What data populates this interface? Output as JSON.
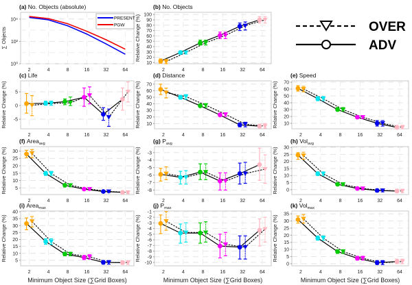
{
  "figure": {
    "xlabel": "Minimum Object Size (∑Grid Boxes)",
    "legend_marker": {
      "over_label": "OVER",
      "adv_label": "ADV"
    },
    "size_colors": [
      "#ffa500",
      "#00e5ee",
      "#00cc00",
      "#ff00ff",
      "#0000ee",
      "#ffb6c1"
    ]
  },
  "chart_data": [
    {
      "id": "a",
      "type": "line",
      "panel_label": "(a)",
      "title": "No. Objects (absolute)",
      "ylabel": "∑ Objects",
      "yscale": "log",
      "x": [
        2,
        4,
        8,
        16,
        32,
        64
      ],
      "xticklabels": [
        "2",
        "4",
        "8",
        "16",
        "32",
        "64"
      ],
      "ylim": [
        1,
        40000
      ],
      "yticks": [
        1,
        100,
        10000
      ],
      "yticklabels": [
        "10⁰",
        "10²",
        "10⁴"
      ],
      "legend": "top-right",
      "series": [
        {
          "name": "PRESENT",
          "color": "#0000ee",
          "values": [
            14000,
            8500,
            2500,
            450,
            60,
            7
          ]
        },
        {
          "name": "PGW",
          "color": "#ee0000",
          "values": [
            17000,
            11000,
            3800,
            800,
            140,
            20
          ]
        }
      ]
    },
    {
      "id": "b",
      "type": "line",
      "panel_label": "(b)",
      "title": "No. Objects",
      "ylabel": "Relative Change (%)",
      "x": [
        2,
        4,
        8,
        16,
        32,
        64
      ],
      "xticklabels": [
        "2",
        "4",
        "8",
        "16",
        "32",
        "64"
      ],
      "ylim": [
        8,
        104
      ],
      "yticks": [
        10,
        20,
        30,
        40,
        50,
        60,
        70,
        80,
        90,
        100
      ],
      "series": [
        {
          "name": "ADV",
          "values": [
            13,
            29,
            47,
            61,
            78,
            90
          ],
          "err_low": [
            9,
            26,
            43,
            55,
            70,
            84
          ],
          "err_high": [
            17,
            32,
            52,
            67,
            84,
            96
          ]
        },
        {
          "name": "OVER",
          "values": [
            12,
            29,
            47,
            61,
            79,
            90
          ],
          "err_low": [
            8,
            26,
            43,
            55,
            71,
            84
          ],
          "err_high": [
            16,
            32,
            52,
            67,
            86,
            96
          ]
        }
      ]
    },
    {
      "id": "c",
      "type": "line",
      "panel_label": "(c)",
      "title": "Life",
      "ylabel": "Relative Change (%)",
      "x": [
        2,
        4,
        8,
        16,
        32,
        64
      ],
      "xticklabels": [
        "2",
        "4",
        "8",
        "16",
        "32",
        "64"
      ],
      "ylim": [
        -8.5,
        9
      ],
      "yticks": [
        -5,
        0,
        5
      ],
      "series": [
        {
          "name": "ADV",
          "values": [
            0.7,
            0.8,
            1.4,
            3.0,
            -3.2,
            2.3
          ],
          "err_low": [
            -2.8,
            0.1,
            0.3,
            -0.3,
            -5.4,
            -1.7
          ],
          "err_high": [
            4.4,
            1.6,
            2.4,
            6.4,
            -0.8,
            6.4
          ]
        },
        {
          "name": "OVER",
          "values": [
            0.1,
            0.7,
            1.0,
            3.7,
            -4.3,
            5.0
          ],
          "err_low": [
            -3.7,
            0.1,
            0.0,
            0.6,
            -7.6,
            1.3
          ],
          "err_high": [
            3.6,
            1.6,
            3.1,
            6.8,
            -1.3,
            8.6
          ]
        }
      ]
    },
    {
      "id": "d",
      "type": "line",
      "panel_label": "(d)",
      "title": "Distance",
      "ylabel": "Relative Change (%)",
      "x": [
        2,
        4,
        8,
        16,
        32,
        64
      ],
      "xticklabels": [
        "2",
        "4",
        "8",
        "16",
        "32",
        "64"
      ],
      "ylim": [
        2,
        75
      ],
      "yticks": [
        10,
        20,
        30,
        40,
        50,
        60,
        70
      ],
      "series": [
        {
          "name": "ADV",
          "values": [
            62,
            50,
            37,
            23,
            8,
            6
          ],
          "err_low": [
            54,
            47,
            35,
            21,
            5,
            3
          ],
          "err_high": [
            70,
            53,
            40,
            26,
            11,
            9
          ]
        },
        {
          "name": "OVER",
          "values": [
            57,
            51,
            38,
            24,
            9,
            6
          ],
          "err_low": [
            49,
            47,
            35,
            21,
            5,
            3
          ],
          "err_high": [
            64,
            54,
            40,
            26,
            12,
            10
          ]
        }
      ]
    },
    {
      "id": "e",
      "type": "line",
      "panel_label": "(e)",
      "title": "Speed",
      "ylabel": "Relative Change (%)",
      "x": [
        2,
        4,
        8,
        16,
        32,
        64
      ],
      "xticklabels": [
        "2",
        "4",
        "8",
        "16",
        "32",
        "64"
      ],
      "ylim": [
        2,
        72
      ],
      "yticks": [
        10,
        20,
        30,
        40,
        50,
        60,
        70
      ],
      "series": [
        {
          "name": "ADV",
          "values": [
            61,
            46,
            30,
            19,
            10,
            4
          ],
          "err_low": [
            57,
            43,
            28,
            17,
            6,
            2
          ],
          "err_high": [
            65,
            49,
            33,
            21,
            14,
            7
          ]
        },
        {
          "name": "OVER",
          "values": [
            60,
            46,
            30,
            19,
            10,
            4
          ],
          "err_low": [
            56,
            43,
            28,
            17,
            6,
            2
          ],
          "err_high": [
            64,
            49,
            33,
            21,
            14,
            7
          ]
        }
      ]
    },
    {
      "id": "f",
      "type": "line",
      "panel_label": "(f)",
      "title": "Area",
      "title_sub": "avg",
      "ylabel": "Relative Change (%)",
      "x": [
        2,
        4,
        8,
        16,
        32,
        64
      ],
      "xticklabels": [
        "2",
        "4",
        "8",
        "16",
        "32",
        "64"
      ],
      "ylim": [
        0.5,
        33
      ],
      "yticks": [
        5,
        10,
        15,
        20,
        25,
        30
      ],
      "series": [
        {
          "name": "ADV",
          "values": [
            28,
            14.8,
            6.8,
            4.2,
            2.6,
            2.0
          ],
          "err_low": [
            25.5,
            13.5,
            5.8,
            3.4,
            1.9,
            1.2
          ],
          "err_high": [
            30.5,
            16.2,
            7.8,
            5.0,
            3.3,
            2.8
          ]
        },
        {
          "name": "OVER",
          "values": [
            28.5,
            14.8,
            6.8,
            4.2,
            2.6,
            2.0
          ],
          "err_low": [
            25.5,
            13.5,
            5.8,
            3.4,
            1.9,
            1.2
          ],
          "err_high": [
            31,
            16.2,
            7.8,
            5.0,
            3.3,
            2.8
          ]
        }
      ]
    },
    {
      "id": "g",
      "type": "line",
      "panel_label": "(g)",
      "title": "P",
      "title_sub": "avg",
      "ylabel": "Relative Change (%)",
      "x": [
        2,
        4,
        8,
        16,
        32,
        64
      ],
      "xticklabels": [
        "2",
        "4",
        "8",
        "16",
        "32",
        "64"
      ],
      "ylim": [
        -8.6,
        -2.2
      ],
      "yticks": [
        -8,
        -7,
        -6,
        -5,
        -4,
        -3
      ],
      "series": [
        {
          "name": "ADV",
          "values": [
            -5.9,
            -6.3,
            -5.6,
            -6.8,
            -5.8,
            -4.6
          ],
          "err_low": [
            -6.8,
            -7.2,
            -6.6,
            -8.0,
            -7.2,
            -6.7
          ],
          "err_high": [
            -5.1,
            -5.5,
            -4.5,
            -5.7,
            -4.4,
            -2.4
          ]
        },
        {
          "name": "OVER",
          "values": [
            -5.8,
            -6.3,
            -5.6,
            -6.8,
            -5.8,
            -5.2
          ],
          "err_low": [
            -6.6,
            -7.2,
            -6.6,
            -8.0,
            -7.1,
            -7.1
          ],
          "err_high": [
            -4.9,
            -5.4,
            -4.5,
            -5.7,
            -4.3,
            -3.3
          ]
        }
      ]
    },
    {
      "id": "h",
      "type": "line",
      "panel_label": "(h)",
      "title": "Vol",
      "title_sub": "avg",
      "ylabel": "Relative Change (%)",
      "x": [
        2,
        4,
        8,
        16,
        32,
        64
      ],
      "xticklabels": [
        "2",
        "4",
        "8",
        "16",
        "32",
        "64"
      ],
      "ylim": [
        -3.5,
        30.5
      ],
      "yticks": [
        0,
        5,
        10,
        15,
        20,
        25,
        30
      ],
      "series": [
        {
          "name": "ADV",
          "values": [
            24.5,
            11.3,
            3.8,
            0.8,
            -0.6,
            -1.0
          ],
          "err_low": [
            21.5,
            10.0,
            2.8,
            -0.2,
            -1.6,
            -2.2
          ],
          "err_high": [
            26.2,
            12.6,
            4.8,
            1.8,
            0.4,
            0.3
          ]
        },
        {
          "name": "OVER",
          "values": [
            24.2,
            11.3,
            3.7,
            0.8,
            -0.6,
            -1.0
          ],
          "err_low": [
            21.5,
            10.0,
            2.8,
            -0.2,
            -1.6,
            -2.2
          ],
          "err_high": [
            26.5,
            12.6,
            4.8,
            1.8,
            0.4,
            0.3
          ]
        }
      ]
    },
    {
      "id": "i",
      "type": "line",
      "panel_label": "(i)",
      "title": "Area",
      "title_sub": "max",
      "ylabel": "Relative Change (%)",
      "x": [
        2,
        4,
        8,
        16,
        32,
        64
      ],
      "xticklabels": [
        "2",
        "4",
        "8",
        "16",
        "32",
        "64"
      ],
      "ylim": [
        1,
        40.5
      ],
      "yticks": [
        5,
        10,
        15,
        20,
        25,
        30,
        35,
        40
      ],
      "series": [
        {
          "name": "ADV",
          "values": [
            31.5,
            18.5,
            9.5,
            7.0,
            3.5,
            3.3
          ],
          "err_low": [
            27,
            16.5,
            8.2,
            5.5,
            2.2,
            2.0
          ],
          "err_high": [
            35.5,
            20.5,
            10.8,
            8.5,
            4.8,
            4.6
          ]
        },
        {
          "name": "OVER",
          "values": [
            33,
            18.5,
            9.5,
            7.5,
            3.5,
            3.3
          ],
          "err_low": [
            29,
            16.5,
            8.2,
            5.8,
            2.2,
            2.0
          ],
          "err_high": [
            36.5,
            20.5,
            10.8,
            9.0,
            4.8,
            4.6
          ]
        }
      ]
    },
    {
      "id": "j",
      "type": "line",
      "panel_label": "(j)",
      "title": "P",
      "title_sub": "max",
      "ylabel": "Relative Change (%)",
      "x": [
        2,
        4,
        8,
        16,
        32,
        64
      ],
      "xticklabels": [
        "2",
        "4",
        "8",
        "16",
        "32",
        "64"
      ],
      "ylim": [
        -10.6,
        -0.9
      ],
      "yticks": [
        -10,
        -9,
        -8,
        -7,
        -6,
        -5,
        -4,
        -3,
        -2,
        -1
      ],
      "series": [
        {
          "name": "ADV",
          "values": [
            -3.1,
            -4.8,
            -4.8,
            -7.1,
            -7.3,
            -4.3
          ],
          "err_low": [
            -4.9,
            -6.6,
            -6.6,
            -9.2,
            -9.4,
            -7.1
          ],
          "err_high": [
            -1.6,
            -3.2,
            -3.0,
            -5.0,
            -5.3,
            -2.3
          ]
        },
        {
          "name": "OVER",
          "values": [
            -2.7,
            -4.7,
            -4.7,
            -6.8,
            -7.3,
            -4.1
          ],
          "err_low": [
            -4.3,
            -6.4,
            -6.4,
            -8.8,
            -9.4,
            -6.4
          ],
          "err_high": [
            -1.0,
            -3.0,
            -2.8,
            -4.7,
            -5.3,
            -2.0
          ]
        }
      ]
    },
    {
      "id": "k",
      "type": "line",
      "panel_label": "(k)",
      "title": "Vol",
      "title_sub": "max",
      "ylabel": "Relative Change (%)",
      "x": [
        2,
        4,
        8,
        16,
        32,
        64
      ],
      "xticklabels": [
        "2",
        "4",
        "8",
        "16",
        "32",
        "64"
      ],
      "ylim": [
        -1.5,
        37
      ],
      "yticks": [
        0,
        5,
        10,
        15,
        20,
        25,
        30,
        35
      ],
      "series": [
        {
          "name": "ADV",
          "values": [
            31,
            18,
            8.5,
            3.8,
            0.7,
            1.5
          ],
          "err_low": [
            28.5,
            16.5,
            7.2,
            2.5,
            -0.6,
            0.0
          ],
          "err_high": [
            33.5,
            19.5,
            9.8,
            5.2,
            2.2,
            3.2
          ]
        },
        {
          "name": "OVER",
          "values": [
            31.5,
            18,
            8.5,
            3.8,
            0.7,
            1.5
          ],
          "err_low": [
            28.5,
            16.5,
            7.2,
            2.5,
            -0.6,
            0.0
          ],
          "err_high": [
            34.5,
            19.5,
            9.8,
            5.2,
            2.2,
            3.2
          ]
        }
      ]
    }
  ]
}
